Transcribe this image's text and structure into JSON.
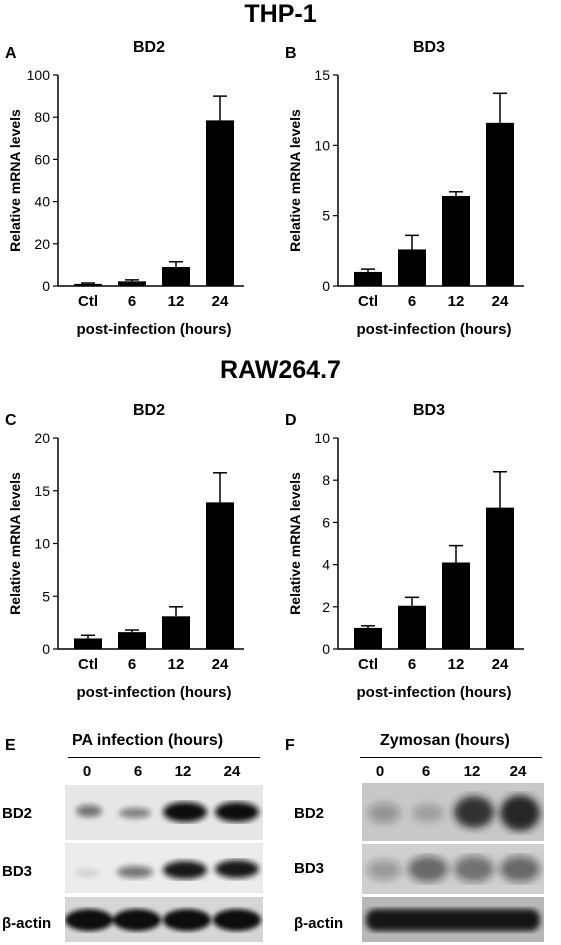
{
  "headings": {
    "thp1": "THP-1",
    "raw": "RAW264.7"
  },
  "panels": {
    "A": "A",
    "B": "B",
    "C": "C",
    "D": "D",
    "E": "E",
    "F": "F"
  },
  "bar_color": "#000000",
  "chart_data": [
    {
      "type": "bar",
      "panel": "A",
      "title": "BD2",
      "ylabel": "Relative mRNA levels",
      "xlabel": "post-infection (hours)",
      "categories": [
        "Ctl",
        "6",
        "12",
        "24"
      ],
      "values": [
        1,
        2.2,
        9,
        78.5
      ],
      "errors": [
        0.4,
        0.7,
        2.5,
        11.5
      ],
      "ylim": [
        0,
        100
      ],
      "yticks": [
        0,
        20,
        40,
        60,
        80,
        100
      ]
    },
    {
      "type": "bar",
      "panel": "B",
      "title": "BD3",
      "ylabel": "Relative mRNA levels",
      "xlabel": "post-infection (hours)",
      "categories": [
        "Ctl",
        "6",
        "12",
        "24"
      ],
      "values": [
        1,
        2.6,
        6.4,
        11.6
      ],
      "errors": [
        0.2,
        1.0,
        0.3,
        2.1
      ],
      "ylim": [
        0,
        15
      ],
      "yticks": [
        0,
        5,
        10,
        15
      ]
    },
    {
      "type": "bar",
      "panel": "C",
      "title": "BD2",
      "ylabel": "Relative mRNA levels",
      "xlabel": "post-infection (hours)",
      "categories": [
        "Ctl",
        "6",
        "12",
        "24"
      ],
      "values": [
        1,
        1.6,
        3.1,
        13.9
      ],
      "errors": [
        0.3,
        0.2,
        0.9,
        2.8
      ],
      "ylim": [
        0,
        20
      ],
      "yticks": [
        0,
        5,
        10,
        15,
        20
      ]
    },
    {
      "type": "bar",
      "panel": "D",
      "title": "BD3",
      "ylabel": "Relative mRNA levels",
      "xlabel": "post-infection (hours)",
      "categories": [
        "Ctl",
        "6",
        "12",
        "24"
      ],
      "values": [
        1,
        2.05,
        4.1,
        6.7
      ],
      "errors": [
        0.1,
        0.4,
        0.8,
        1.7
      ],
      "ylim": [
        0,
        10
      ],
      "yticks": [
        0,
        2,
        4,
        6,
        8,
        10
      ]
    }
  ],
  "blots": [
    {
      "panel": "E",
      "title": "PA infection (hours)",
      "lanes": [
        "0",
        "6",
        "12",
        "24"
      ],
      "rows": [
        {
          "label": "BD2",
          "intensities": [
            0.55,
            0.5,
            1.0,
            1.0
          ]
        },
        {
          "label": "BD3",
          "intensities": [
            0.1,
            0.5,
            0.95,
            0.95
          ]
        },
        {
          "label": "β-actin",
          "intensities": [
            1.0,
            1.0,
            1.0,
            1.0
          ]
        }
      ]
    },
    {
      "panel": "F",
      "title": "Zymosan (hours)",
      "lanes": [
        "0",
        "6",
        "12",
        "24"
      ],
      "rows": [
        {
          "label": "BD2",
          "intensities": [
            0.3,
            0.2,
            0.85,
            0.95
          ]
        },
        {
          "label": "BD3",
          "intensities": [
            0.3,
            0.55,
            0.5,
            0.55
          ]
        },
        {
          "label": "β-actin",
          "intensities": [
            1.0,
            1.0,
            1.0,
            1.0
          ]
        }
      ]
    }
  ]
}
